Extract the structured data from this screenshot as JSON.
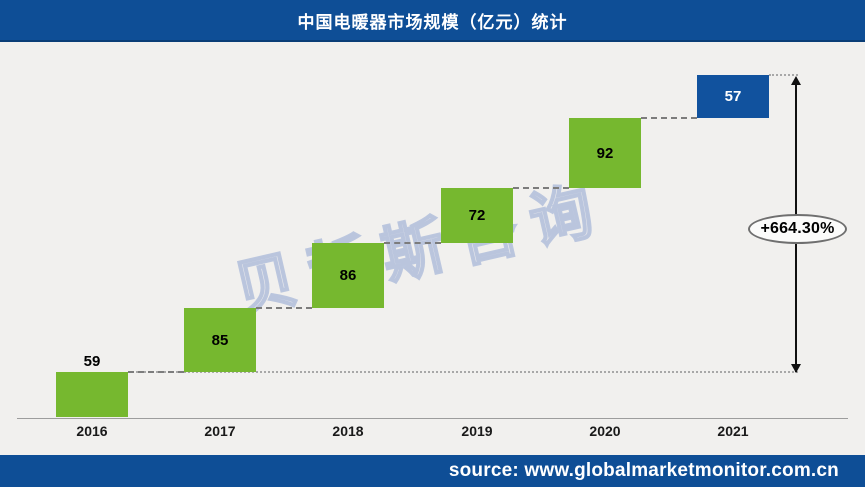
{
  "header": {
    "title": "中国电暖器市场规模（亿元）统计"
  },
  "footer": {
    "source_text": "source: www.globalmarketmonitor.com.cn"
  },
  "watermark": {
    "text": "贝哲斯咨询"
  },
  "annotation": {
    "growth_label": "+664.30%"
  },
  "colors": {
    "header_bg": "#0e4e96",
    "footer_bg": "#0e4e96",
    "green_bar": "#76b82f",
    "blue_bar": "#11529e",
    "background": "#f1f0ee"
  },
  "chart_data": {
    "type": "bar",
    "subtype": "waterfall",
    "title": "中国电暖器市场规模（亿元）统计",
    "unit": "亿元",
    "categories": [
      "2016",
      "2017",
      "2018",
      "2019",
      "2020",
      "2021"
    ],
    "values": [
      59,
      85,
      86,
      72,
      92,
      57
    ],
    "cumulative": [
      59,
      144,
      230,
      302,
      394,
      451
    ],
    "bar_colors": [
      "#76b82f",
      "#76b82f",
      "#76b82f",
      "#76b82f",
      "#76b82f",
      "#11529e"
    ],
    "value_label_colors": [
      "#000000",
      "#000000",
      "#000000",
      "#000000",
      "#000000",
      "#ffffff"
    ],
    "annotation_growth": "+664.30%",
    "xlabel": "",
    "ylabel": "",
    "ylim": [
      0,
      451
    ],
    "grid": false,
    "legend": "none"
  }
}
